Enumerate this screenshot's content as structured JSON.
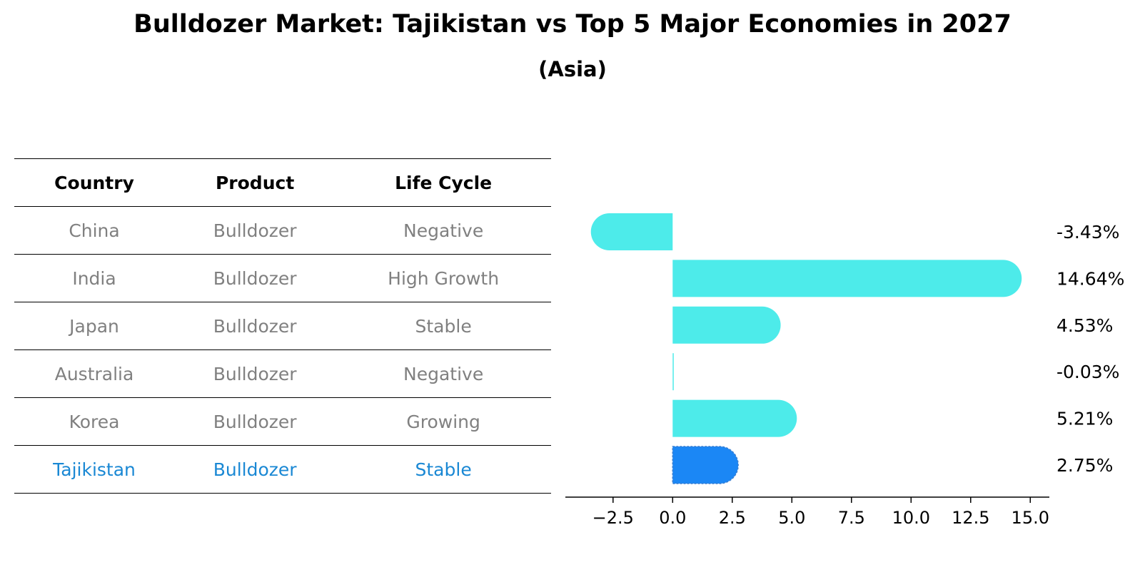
{
  "header": {
    "title": "Bulldozer Market: Tajikistan vs Top 5 Major Economies in 2027",
    "subtitle": "(Asia)"
  },
  "table": {
    "columns": [
      "Country",
      "Product",
      "Life Cycle"
    ],
    "rows": [
      {
        "country": "China",
        "product": "Bulldozer",
        "life_cycle": "Negative"
      },
      {
        "country": "India",
        "product": "Bulldozer",
        "life_cycle": "High Growth"
      },
      {
        "country": "Japan",
        "product": "Bulldozer",
        "life_cycle": "Stable"
      },
      {
        "country": "Australia",
        "product": "Bulldozer",
        "life_cycle": "Negative"
      },
      {
        "country": "Korea",
        "product": "Bulldozer",
        "life_cycle": "Growing"
      },
      {
        "country": "Tajikistan",
        "product": "Bulldozer",
        "life_cycle": "Stable"
      }
    ],
    "highlight_row": 5
  },
  "chart_data": {
    "type": "bar",
    "orientation": "horizontal",
    "categories": [
      "China",
      "India",
      "Japan",
      "Australia",
      "Korea",
      "Tajikistan"
    ],
    "values": [
      -3.43,
      14.64,
      4.53,
      -0.03,
      5.21,
      2.75
    ],
    "value_labels": [
      "-3.43%",
      "14.64%",
      "4.53%",
      "-0.03%",
      "5.21%",
      "2.75%"
    ],
    "xlim": [
      -4.5,
      15.8
    ],
    "xticks": [
      -2.5,
      0.0,
      2.5,
      5.0,
      7.5,
      10.0,
      12.5,
      15.0
    ],
    "xtick_labels": [
      "−2.5",
      "0.0",
      "2.5",
      "5.0",
      "7.5",
      "10.0",
      "12.5",
      "15.0"
    ],
    "colors": {
      "default": "#4debea",
      "highlight": "#1b87f5"
    },
    "highlight_index": 5,
    "grid": false
  }
}
